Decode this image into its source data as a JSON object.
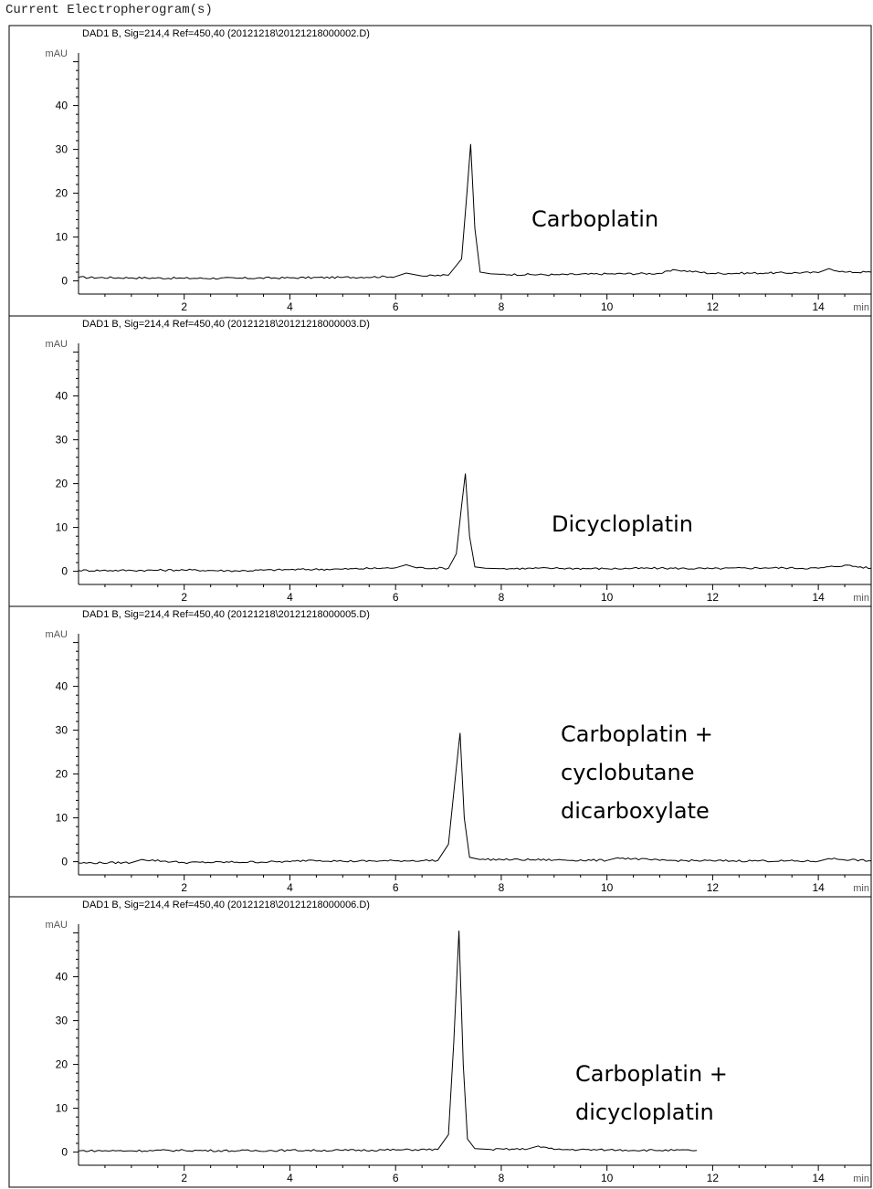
{
  "page": {
    "title": "Current Electropherogram(s)"
  },
  "chart_data": [
    {
      "type": "line",
      "title": "DAD1 B, Sig=214,4 Ref=450,40 (20121218\\20121218000002.D)",
      "ylabel": "mAU",
      "xlabel": "min",
      "xlim": [
        0,
        15
      ],
      "ylim": [
        -3,
        52
      ],
      "xticks": [
        2,
        4,
        6,
        8,
        10,
        12,
        14
      ],
      "yticks": [
        0,
        10,
        20,
        30,
        40
      ],
      "annotation": [
        "Carboplatin"
      ],
      "series": [
        {
          "x": [
            0,
            1,
            2,
            3,
            4,
            5,
            6,
            6.2,
            6.5,
            7.0,
            7.25,
            7.35,
            7.42,
            7.5,
            7.6,
            7.8,
            8,
            9,
            10,
            11,
            11.3,
            12,
            13,
            14,
            14.2,
            14.5,
            15
          ],
          "y": [
            0.8,
            0.7,
            0.6,
            0.6,
            0.7,
            0.8,
            1.0,
            1.8,
            1.1,
            1.3,
            5.0,
            20.0,
            31.2,
            12.0,
            2.0,
            1.6,
            1.5,
            1.4,
            1.6,
            1.7,
            2.5,
            1.7,
            1.8,
            1.9,
            2.8,
            2.0,
            2.0
          ]
        }
      ]
    },
    {
      "type": "line",
      "title": "DAD1 B, Sig=214,4 Ref=450,40 (20121218\\20121218000003.D)",
      "ylabel": "mAU",
      "xlabel": "min",
      "xlim": [
        0,
        15
      ],
      "ylim": [
        -3,
        52
      ],
      "xticks": [
        2,
        4,
        6,
        8,
        10,
        12,
        14
      ],
      "yticks": [
        0,
        10,
        20,
        30,
        40
      ],
      "annotation": [
        "Dicycloplatin"
      ],
      "series": [
        {
          "x": [
            0,
            1,
            2,
            3,
            4,
            5,
            6,
            6.2,
            6.4,
            7.0,
            7.15,
            7.25,
            7.32,
            7.4,
            7.5,
            7.7,
            8,
            9,
            10,
            11,
            12,
            13,
            14,
            14.5,
            15
          ],
          "y": [
            0.2,
            0.2,
            0.3,
            0.1,
            0.4,
            0.5,
            0.8,
            1.5,
            0.8,
            0.7,
            4.0,
            15.0,
            22.3,
            8.0,
            1.0,
            0.7,
            0.6,
            0.7,
            0.6,
            0.7,
            0.6,
            0.8,
            0.7,
            1.4,
            0.7
          ]
        }
      ]
    },
    {
      "type": "line",
      "title": "DAD1 B, Sig=214,4 Ref=450,40 (20121218\\20121218000005.D)",
      "ylabel": "mAU",
      "xlabel": "min",
      "xlim": [
        0,
        15
      ],
      "ylim": [
        -3,
        52
      ],
      "xticks": [
        2,
        4,
        6,
        8,
        10,
        12,
        14
      ],
      "yticks": [
        0,
        10,
        20,
        30,
        40
      ],
      "annotation": [
        "Carboplatin +",
        "cyclobutane",
        "dicarboxylate"
      ],
      "series": [
        {
          "x": [
            0,
            1,
            1.2,
            2,
            3,
            4,
            4.4,
            5,
            6,
            6.8,
            7.0,
            7.12,
            7.22,
            7.3,
            7.4,
            7.6,
            8,
            9,
            10,
            10.2,
            11,
            12,
            13,
            14,
            14.2,
            15
          ],
          "y": [
            -0.3,
            -0.2,
            0.5,
            -0.2,
            -0.1,
            0.0,
            0.4,
            0.1,
            0.2,
            0.3,
            4.0,
            18.0,
            29.4,
            10.0,
            1.0,
            0.5,
            0.5,
            0.4,
            0.3,
            0.9,
            0.3,
            0.2,
            0.2,
            0.1,
            0.7,
            0.2
          ]
        }
      ]
    },
    {
      "type": "line",
      "title": "DAD1 B, Sig=214,4 Ref=450,40 (20121218\\20121218000006.D)",
      "ylabel": "mAU",
      "xlabel": "min",
      "xlim": [
        0,
        15
      ],
      "ylim": [
        -3,
        52
      ],
      "xticks": [
        2,
        4,
        6,
        8,
        10,
        12,
        14
      ],
      "yticks": [
        0,
        10,
        20,
        30,
        40
      ],
      "annotation": [
        "Carboplatin +",
        "dicycloplatin"
      ],
      "series": [
        {
          "x": [
            0,
            1,
            2,
            3,
            4,
            5,
            6,
            6.8,
            7.0,
            7.1,
            7.2,
            7.28,
            7.36,
            7.5,
            7.8,
            8.5,
            8.7,
            9,
            10,
            11,
            11.7
          ],
          "y": [
            0.3,
            0.3,
            0.4,
            0.3,
            0.4,
            0.4,
            0.5,
            0.6,
            4.0,
            25.0,
            50.5,
            20.0,
            3.0,
            0.8,
            0.6,
            0.7,
            1.4,
            0.6,
            0.5,
            0.4,
            0.4
          ]
        }
      ]
    }
  ]
}
